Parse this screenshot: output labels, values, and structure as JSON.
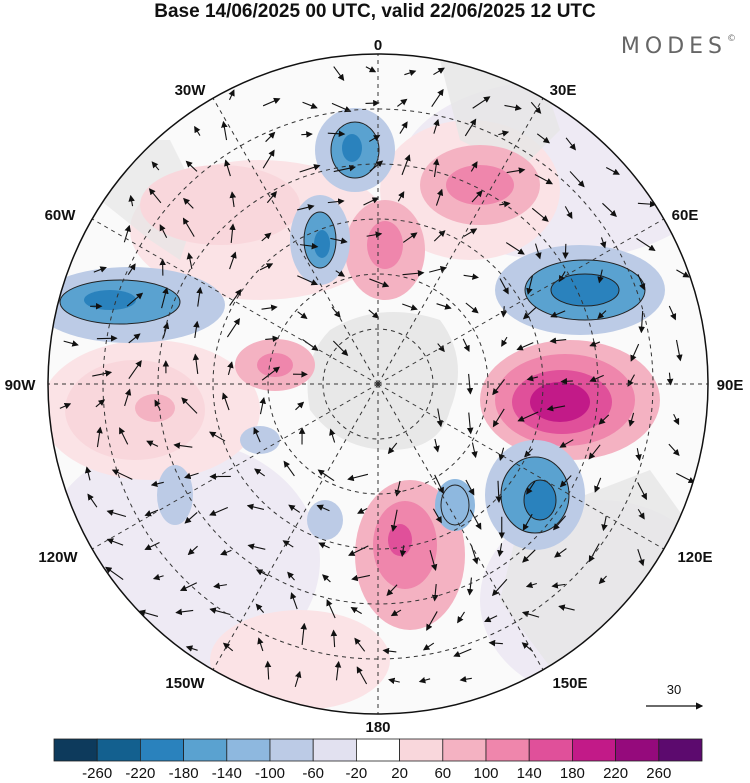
{
  "title": "Base 14/06/2025 00 UTC, valid 22/06/2025 12 UTC",
  "logo": {
    "text": "MODES",
    "mark": "©"
  },
  "longitude_labels": [
    "0",
    "30E",
    "60E",
    "90E",
    "120E",
    "150E",
    "180",
    "150W",
    "120W",
    "90W",
    "60W",
    "30W"
  ],
  "vector_reference": {
    "value": "30"
  },
  "colorbar": {
    "ticks": [
      "-260",
      "-220",
      "-180",
      "-140",
      "-100",
      "-60",
      "-20",
      "20",
      "60",
      "100",
      "140",
      "180",
      "220",
      "260"
    ],
    "colors": [
      "#0d3a5c",
      "#13608f",
      "#2a82bd",
      "#5aa2d0",
      "#8eb8df",
      "#bccbe6",
      "#e2e1f0",
      "#ffffff",
      "#f9d7dc",
      "#f4b2c2",
      "#ef86ac",
      "#e0509a",
      "#c21a88",
      "#950a7c",
      "#5c0a6e"
    ]
  },
  "anomaly_features": [
    {
      "color": "#8eb8df",
      "cx": 0,
      "cy": 0
    }
  ]
}
